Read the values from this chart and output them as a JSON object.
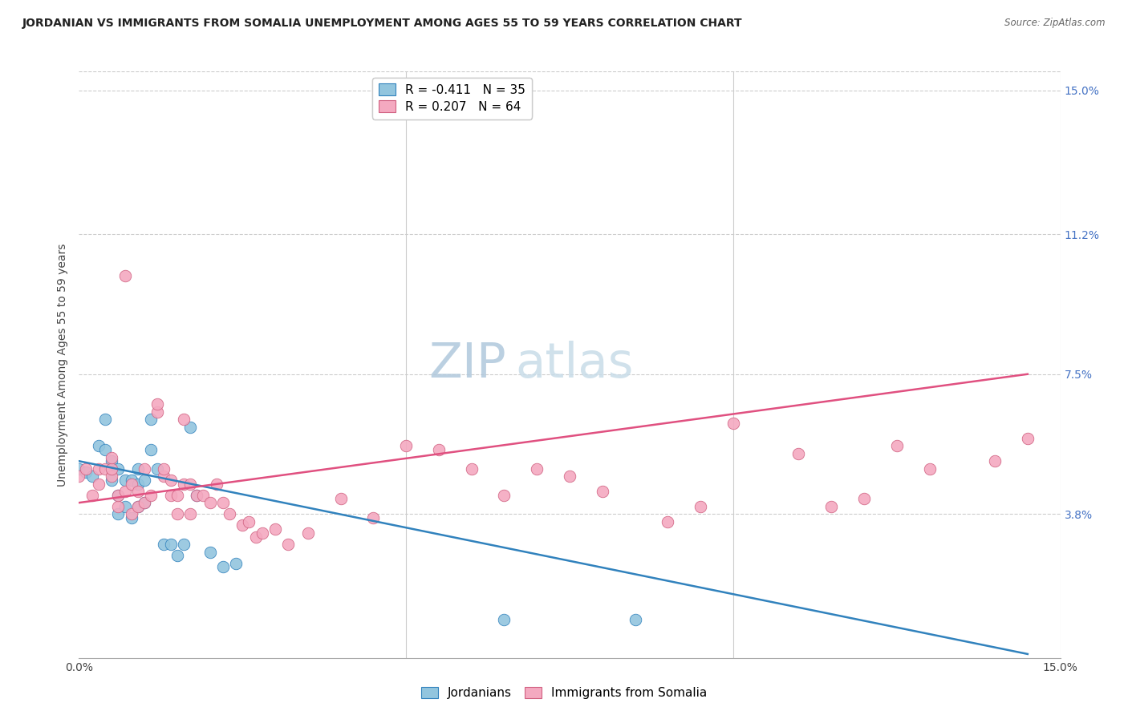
{
  "title": "JORDANIAN VS IMMIGRANTS FROM SOMALIA UNEMPLOYMENT AMONG AGES 55 TO 59 YEARS CORRELATION CHART",
  "source": "Source: ZipAtlas.com",
  "ylabel": "Unemployment Among Ages 55 to 59 years",
  "ytick_labels": [
    "15.0%",
    "11.2%",
    "7.5%",
    "3.8%"
  ],
  "ytick_values": [
    0.15,
    0.112,
    0.075,
    0.038
  ],
  "xmin": 0.0,
  "xmax": 0.15,
  "ymin": 0.0,
  "ymax": 0.155,
  "legend_label1": "R = -0.411   N = 35",
  "legend_label2": "R = 0.207   N = 64",
  "legend_label1_short": "Jordanians",
  "legend_label2_short": "Immigrants from Somalia",
  "color_blue": "#92c5de",
  "color_pink": "#f4a9c0",
  "line_color_blue": "#3182bd",
  "line_color_pink": "#e05080",
  "watermark_zip": "ZIP",
  "watermark_atlas": "atlas",
  "jordanians_x": [
    0.0,
    0.001,
    0.002,
    0.003,
    0.004,
    0.004,
    0.005,
    0.005,
    0.005,
    0.006,
    0.006,
    0.006,
    0.007,
    0.007,
    0.008,
    0.008,
    0.009,
    0.009,
    0.009,
    0.01,
    0.01,
    0.011,
    0.011,
    0.012,
    0.013,
    0.014,
    0.015,
    0.016,
    0.017,
    0.018,
    0.02,
    0.022,
    0.024,
    0.065,
    0.085
  ],
  "jordanians_y": [
    0.05,
    0.049,
    0.048,
    0.056,
    0.055,
    0.063,
    0.047,
    0.05,
    0.052,
    0.038,
    0.043,
    0.05,
    0.04,
    0.047,
    0.037,
    0.047,
    0.04,
    0.046,
    0.05,
    0.041,
    0.047,
    0.055,
    0.063,
    0.05,
    0.03,
    0.03,
    0.027,
    0.03,
    0.061,
    0.043,
    0.028,
    0.024,
    0.025,
    0.01,
    0.01
  ],
  "somalia_x": [
    0.0,
    0.001,
    0.002,
    0.003,
    0.003,
    0.004,
    0.005,
    0.005,
    0.005,
    0.006,
    0.006,
    0.007,
    0.007,
    0.008,
    0.008,
    0.009,
    0.009,
    0.01,
    0.01,
    0.011,
    0.012,
    0.012,
    0.013,
    0.013,
    0.014,
    0.014,
    0.015,
    0.015,
    0.016,
    0.016,
    0.017,
    0.017,
    0.018,
    0.019,
    0.02,
    0.021,
    0.022,
    0.023,
    0.025,
    0.026,
    0.027,
    0.028,
    0.03,
    0.032,
    0.035,
    0.04,
    0.045,
    0.05,
    0.055,
    0.06,
    0.065,
    0.07,
    0.075,
    0.08,
    0.09,
    0.095,
    0.1,
    0.11,
    0.115,
    0.12,
    0.125,
    0.13,
    0.14,
    0.145
  ],
  "somalia_y": [
    0.048,
    0.05,
    0.043,
    0.046,
    0.05,
    0.05,
    0.048,
    0.05,
    0.053,
    0.04,
    0.043,
    0.044,
    0.101,
    0.038,
    0.046,
    0.04,
    0.044,
    0.041,
    0.05,
    0.043,
    0.065,
    0.067,
    0.048,
    0.05,
    0.043,
    0.047,
    0.043,
    0.038,
    0.063,
    0.046,
    0.038,
    0.046,
    0.043,
    0.043,
    0.041,
    0.046,
    0.041,
    0.038,
    0.035,
    0.036,
    0.032,
    0.033,
    0.034,
    0.03,
    0.033,
    0.042,
    0.037,
    0.056,
    0.055,
    0.05,
    0.043,
    0.05,
    0.048,
    0.044,
    0.036,
    0.04,
    0.062,
    0.054,
    0.04,
    0.042,
    0.056,
    0.05,
    0.052,
    0.058
  ],
  "blue_line_x": [
    0.0,
    0.145
  ],
  "blue_line_y_start": 0.052,
  "blue_line_y_end": 0.001,
  "pink_line_x": [
    0.0,
    0.145
  ],
  "pink_line_y_start": 0.041,
  "pink_line_y_end": 0.075,
  "title_fontsize": 10,
  "axis_fontsize": 10,
  "tick_fontsize": 10,
  "watermark_fontsize": 44
}
